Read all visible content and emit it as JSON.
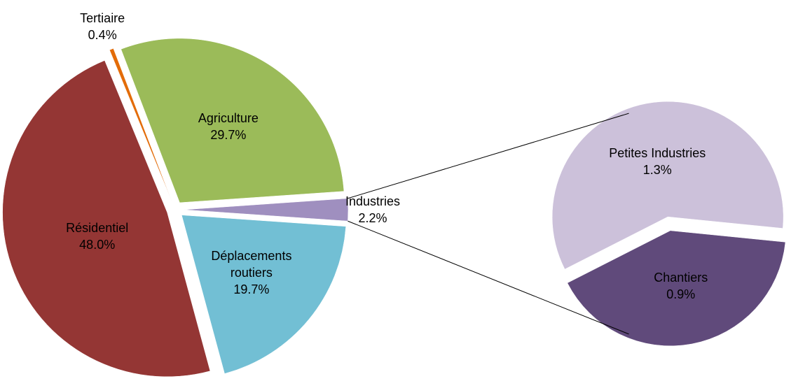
{
  "chart_data": {
    "type": "pie",
    "categories": [
      "Tertiaire",
      "Agriculture",
      "Industries",
      "Déplacements routiers",
      "Résidentiel"
    ],
    "values": [
      0.4,
      29.7,
      2.2,
      19.7,
      48.0
    ],
    "value_labels": [
      "0.4%",
      "29.7%",
      "2.2%",
      "19.7%",
      "48.0%"
    ],
    "colors": [
      "#e36c09",
      "#9bbb59",
      "#9f8fbf",
      "#72bfd4",
      "#943634"
    ],
    "breakdown": {
      "categories": [
        "Petites Industries",
        "Chantiers"
      ],
      "values": [
        1.3,
        0.9
      ],
      "value_labels": [
        "1.3%",
        "0.9%"
      ],
      "colors": [
        "#ccc1da",
        "#604a7b"
      ]
    }
  }
}
